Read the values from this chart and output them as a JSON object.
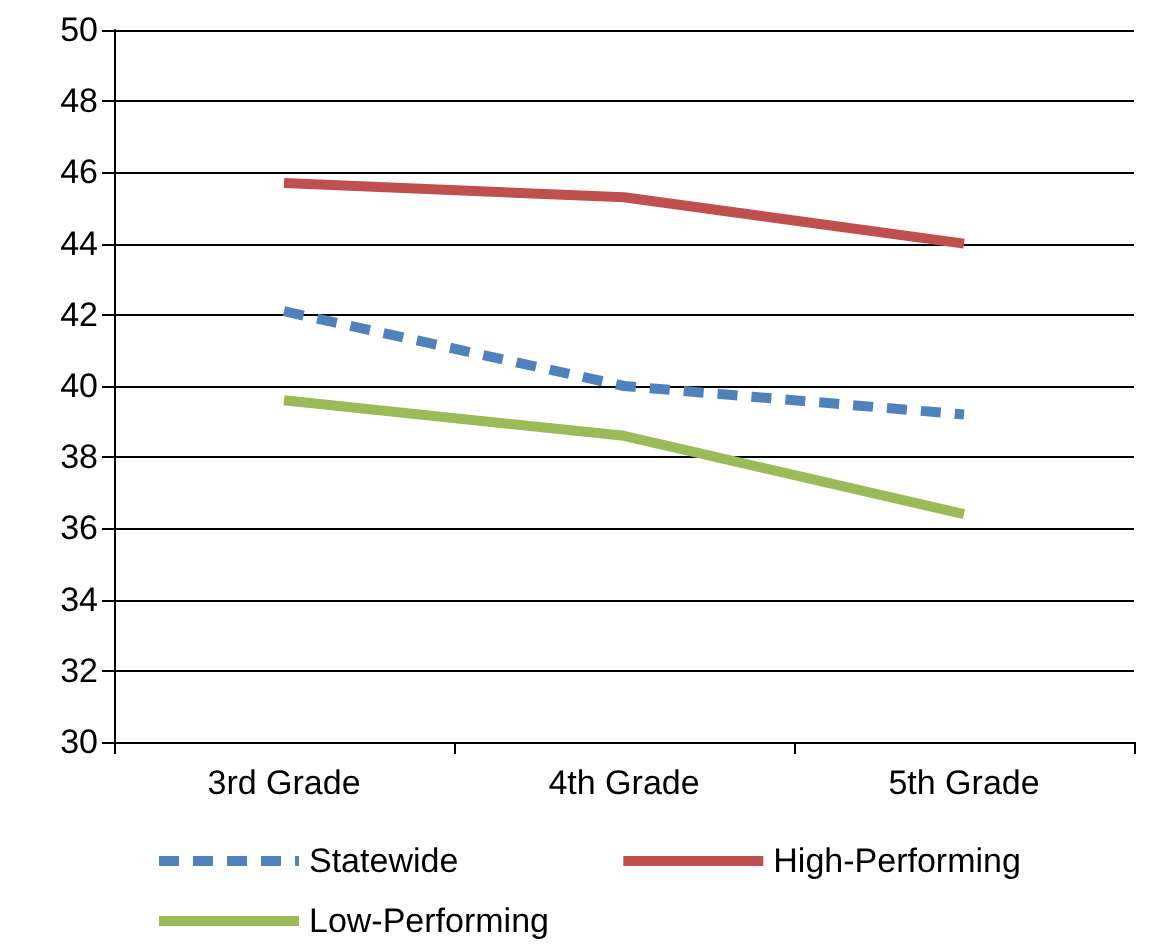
{
  "chart_data": {
    "type": "line",
    "categories": [
      "3rd Grade",
      "4th Grade",
      "5th Grade"
    ],
    "series": [
      {
        "name": "Statewide",
        "color": "#4f81bd",
        "line_style": "dashed",
        "values": [
          42.1,
          40.0,
          39.2
        ]
      },
      {
        "name": "High-Performing",
        "color": "#c0504d",
        "line_style": "solid",
        "values": [
          45.7,
          45.3,
          44.0
        ]
      },
      {
        "name": "Low-Performing",
        "color": "#9bbb59",
        "line_style": "solid",
        "values": [
          39.6,
          38.6,
          36.4
        ]
      }
    ],
    "ylim": [
      30,
      50
    ],
    "yticks": [
      30,
      32,
      34,
      36,
      38,
      40,
      42,
      44,
      46,
      48,
      50
    ],
    "grid": "y",
    "legend": "bottom",
    "marker": "none"
  }
}
